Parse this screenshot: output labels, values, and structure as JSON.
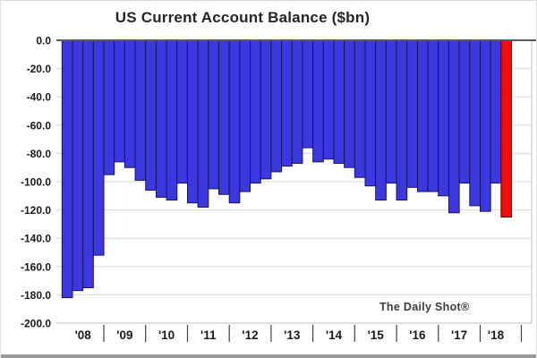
{
  "chart_data": {
    "type": "bar",
    "title": "US Current Account Balance ($bn)",
    "watermark": "The Daily Shot®",
    "xlabel": "",
    "ylabel": "",
    "ylim": [
      -200,
      0
    ],
    "grid": true,
    "legend": "none",
    "y_tick_values": [
      0,
      -20,
      -40,
      -60,
      -80,
      -100,
      -120,
      -140,
      -160,
      -180,
      -200
    ],
    "y_tick_labels": [
      "0.0",
      "-20.0",
      "-40.0",
      "-60.0",
      "-80.0",
      "-100.0",
      "-120.0",
      "-140.0",
      "-160.0",
      "-180.0",
      "-200.0"
    ],
    "x_year_labels": [
      "'08",
      "'09",
      "'10",
      "'11",
      "'12",
      "'13",
      "'14",
      "'15",
      "'16",
      "'17",
      "'18"
    ],
    "bars_per_year": [
      4,
      4,
      4,
      4,
      4,
      4,
      4,
      4,
      4,
      4,
      3
    ],
    "categories": [
      "2008 Q1",
      "2008 Q2",
      "2008 Q3",
      "2008 Q4",
      "2009 Q1",
      "2009 Q2",
      "2009 Q3",
      "2009 Q4",
      "2010 Q1",
      "2010 Q2",
      "2010 Q3",
      "2010 Q4",
      "2011 Q1",
      "2011 Q2",
      "2011 Q3",
      "2011 Q4",
      "2012 Q1",
      "2012 Q2",
      "2012 Q3",
      "2012 Q4",
      "2013 Q1",
      "2013 Q2",
      "2013 Q3",
      "2013 Q4",
      "2014 Q1",
      "2014 Q2",
      "2014 Q3",
      "2014 Q4",
      "2015 Q1",
      "2015 Q2",
      "2015 Q3",
      "2015 Q4",
      "2016 Q1",
      "2016 Q2",
      "2016 Q3",
      "2016 Q4",
      "2017 Q1",
      "2017 Q2",
      "2017 Q3",
      "2017 Q4",
      "2018 Q1",
      "2018 Q2",
      "2018 Q3"
    ],
    "values": [
      -182,
      -177,
      -175,
      -152,
      -95,
      -86,
      -90,
      -99,
      -106,
      -111,
      -113,
      -101,
      -115,
      -118,
      -105,
      -109,
      -115,
      -107,
      -101,
      -98,
      -93,
      -89,
      -87,
      -76,
      -86,
      -84,
      -87,
      -90,
      -97,
      -103,
      -113,
      -101,
      -113,
      -104,
      -107,
      -107,
      -110,
      -122,
      -101,
      -117,
      -121,
      -101,
      -125
    ],
    "highlight_index": 42,
    "colors": {
      "bar": "#3b38e0",
      "bar_outline": "#191557",
      "highlight_bar": "#ef0d0d",
      "highlight_outline": "#5c0000",
      "gridline": "#d9d9d9",
      "zero_line": "#595959",
      "axis_border": "#bfbfbf",
      "tick": "#404040",
      "label_text": "#1a1a1a",
      "watermark_text": "#3d3d3d"
    }
  }
}
